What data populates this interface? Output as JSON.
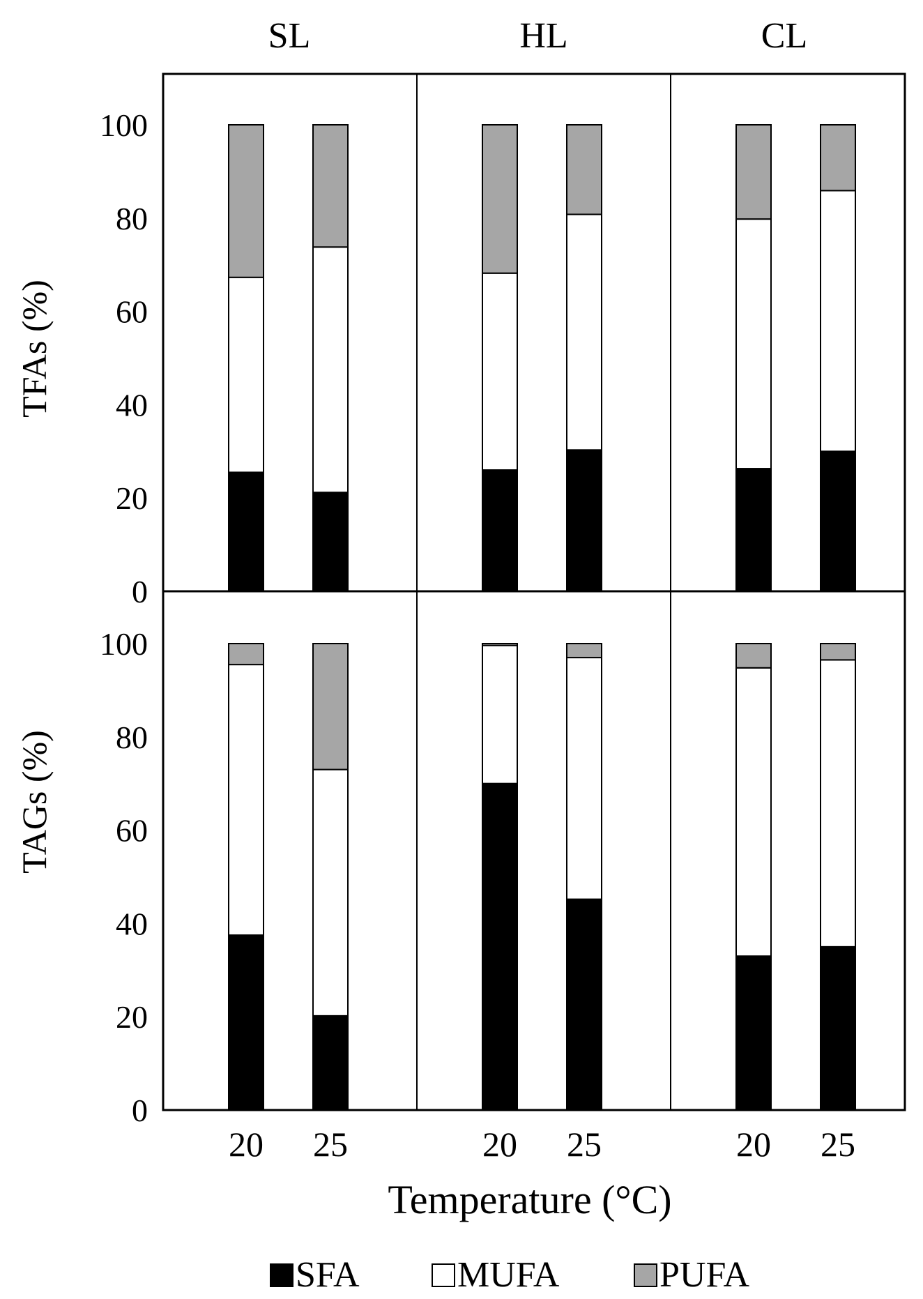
{
  "chart_data": {
    "type": "bar",
    "stacked": true,
    "panel_titles": [
      "SL",
      "HL",
      "CL"
    ],
    "x_tick_labels": [
      "20",
      "25"
    ],
    "xlabel": "Temperature (°C)",
    "y_tick_labels": [
      "0",
      "20",
      "40",
      "60",
      "80",
      "100"
    ],
    "ylim": [
      0,
      110
    ],
    "grid": false,
    "legend_position": "bottom",
    "colors": {
      "SFA": "#000000",
      "MUFA": "#ffffff",
      "PUFA": "#a6a6a6"
    },
    "legend": [
      "SFA",
      "MUFA",
      "PUFA"
    ],
    "rows": [
      {
        "ylabel": "TFAs (%)",
        "panels": [
          {
            "title": "SL",
            "x": [
              "20",
              "25"
            ],
            "series": [
              {
                "name": "SFA",
                "values": [
                  25.5,
                  21.2
                ]
              },
              {
                "name": "MUFA",
                "values": [
                  41.8,
                  52.6
                ]
              },
              {
                "name": "PUFA",
                "values": [
                  32.7,
                  26.2
                ]
              }
            ]
          },
          {
            "title": "HL",
            "x": [
              "20",
              "25"
            ],
            "series": [
              {
                "name": "SFA",
                "values": [
                  26.0,
                  30.3
                ]
              },
              {
                "name": "MUFA",
                "values": [
                  42.2,
                  50.5
                ]
              },
              {
                "name": "PUFA",
                "values": [
                  31.8,
                  19.2
                ]
              }
            ]
          },
          {
            "title": "CL",
            "x": [
              "20",
              "25"
            ],
            "series": [
              {
                "name": "SFA",
                "values": [
                  26.3,
                  30.0
                ]
              },
              {
                "name": "MUFA",
                "values": [
                  53.5,
                  55.9
                ]
              },
              {
                "name": "PUFA",
                "values": [
                  20.2,
                  14.1
                ]
              }
            ]
          }
        ]
      },
      {
        "ylabel": "TAGs (%)",
        "panels": [
          {
            "title": "SL",
            "x": [
              "20",
              "25"
            ],
            "series": [
              {
                "name": "SFA",
                "values": [
                  37.5,
                  20.2
                ]
              },
              {
                "name": "MUFA",
                "values": [
                  58.0,
                  52.8
                ]
              },
              {
                "name": "PUFA",
                "values": [
                  4.5,
                  27.0
                ]
              }
            ]
          },
          {
            "title": "HL",
            "x": [
              "20",
              "25"
            ],
            "series": [
              {
                "name": "SFA",
                "values": [
                  70.0,
                  45.2
                ]
              },
              {
                "name": "MUFA",
                "values": [
                  29.6,
                  51.8
                ]
              },
              {
                "name": "PUFA",
                "values": [
                  0.4,
                  3.0
                ]
              }
            ]
          },
          {
            "title": "CL",
            "x": [
              "20",
              "25"
            ],
            "series": [
              {
                "name": "SFA",
                "values": [
                  33.0,
                  35.0
                ]
              },
              {
                "name": "MUFA",
                "values": [
                  61.8,
                  61.5
                ]
              },
              {
                "name": "PUFA",
                "values": [
                  5.2,
                  3.5
                ]
              }
            ]
          }
        ]
      }
    ]
  }
}
